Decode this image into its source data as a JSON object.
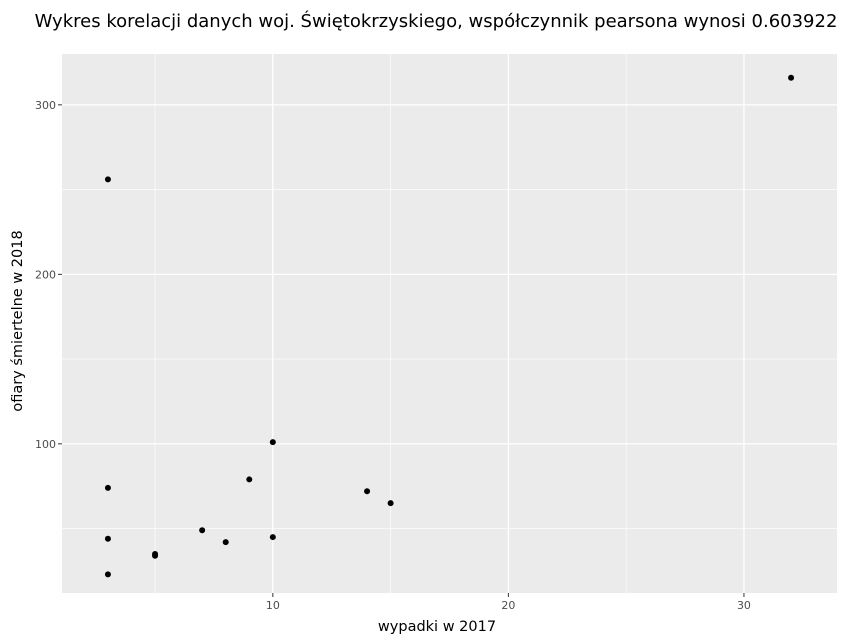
{
  "chart_data": {
    "type": "scatter",
    "title": "Wykres korelacji danych woj. Świętokrzyskiego, współczynnik pearsona wynosi  0.603922",
    "xlabel": "wypadki w 2017",
    "ylabel": "ofiary śmiertelne w 2018",
    "xlim": [
      1.05,
      33.95
    ],
    "ylim": [
      12,
      330
    ],
    "xticks": [
      10,
      20,
      30
    ],
    "yticks": [
      100,
      200,
      300
    ],
    "grid": true,
    "legend": "none",
    "colors": {
      "panel_background": "#ebebeb",
      "grid": "#ffffff",
      "point": "#000000",
      "tick_label": "#4d4d4d"
    },
    "points": [
      {
        "x": 3,
        "y": 256
      },
      {
        "x": 3,
        "y": 74
      },
      {
        "x": 3,
        "y": 44
      },
      {
        "x": 3,
        "y": 23
      },
      {
        "x": 5,
        "y": 35
      },
      {
        "x": 5,
        "y": 34
      },
      {
        "x": 7,
        "y": 49
      },
      {
        "x": 8,
        "y": 42
      },
      {
        "x": 9,
        "y": 79
      },
      {
        "x": 10,
        "y": 101
      },
      {
        "x": 10,
        "y": 45
      },
      {
        "x": 14,
        "y": 72
      },
      {
        "x": 15,
        "y": 65
      },
      {
        "x": 32,
        "y": 316
      }
    ]
  }
}
